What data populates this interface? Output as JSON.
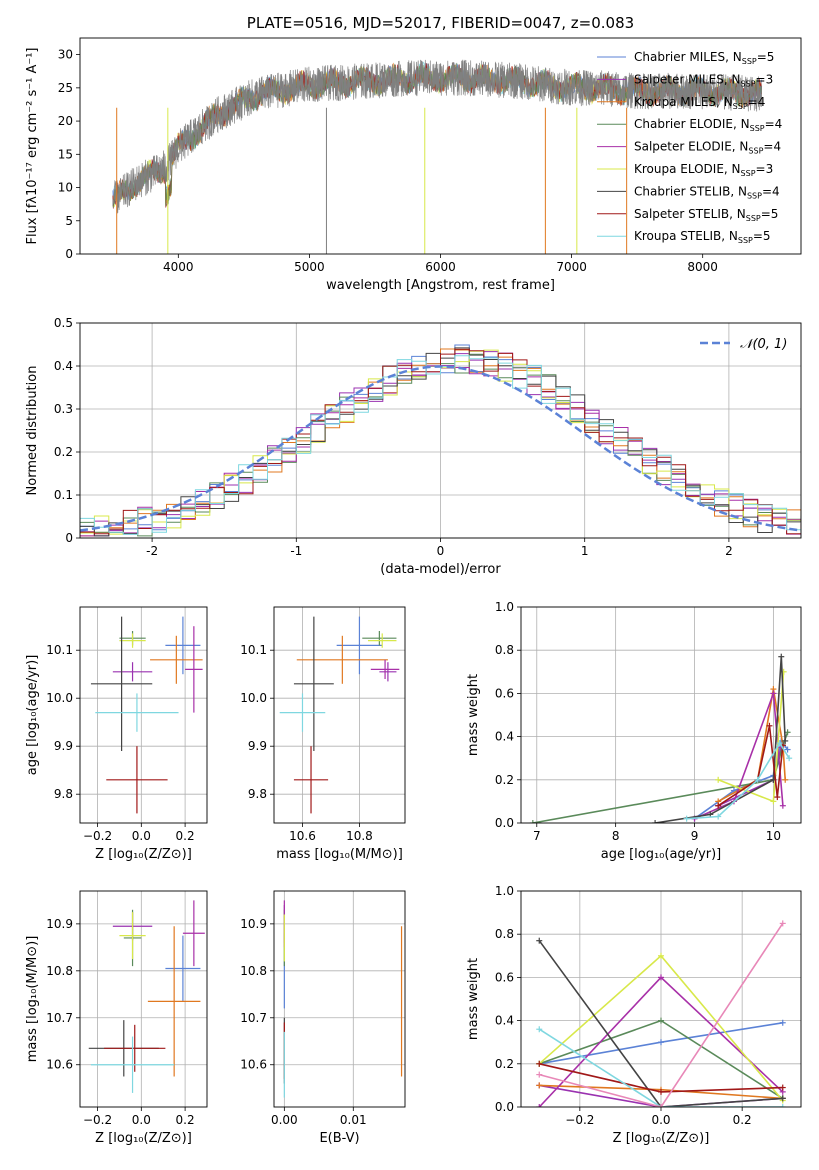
{
  "colors": {
    "Chabrier MILES": "#5b82d6",
    "Salpeter MILES": "#9a32b0",
    "Kroupa MILES": "#e07820",
    "Chabrier ELODIE": "#5a8a5a",
    "Salpeter ELODIE": "#a830a8",
    "Kroupa ELODIE": "#d8e84a",
    "Chabrier STELIB": "#444444",
    "Salpeter STELIB": "#a01818",
    "Kroupa STELIB": "#7fd7e0"
  },
  "chart_data": [
    {
      "id": "spectrum",
      "type": "line",
      "title": "PLATE=0516, MJD=52017, FIBERID=0047, z=0.083",
      "xlabel": "wavelength [Angstrom, rest frame]",
      "ylabel": "Flux [fλ10⁻¹⁷ erg cm⁻² s⁻¹ A⁻¹]",
      "xlim": [
        3250,
        8750
      ],
      "ylim": [
        0,
        32.5
      ],
      "xticks": [
        4000,
        5000,
        6000,
        7000,
        8000
      ],
      "yticks": [
        0,
        5,
        10,
        15,
        20,
        25,
        30
      ],
      "grid": false,
      "legend_placement": "top-right",
      "legend": [
        {
          "name": "Chabrier MILES",
          "sub_prefix": "N",
          "sub": "SSP",
          "suffix": "=5"
        },
        {
          "name": "Salpeter MILES",
          "sub_prefix": "N",
          "sub": "SSP",
          "suffix": "=3"
        },
        {
          "name": "Kroupa MILES",
          "sub_prefix": "N",
          "sub": "SSP",
          "suffix": "=4"
        },
        {
          "name": "Chabrier ELODIE",
          "sub_prefix": "N",
          "sub": "SSP",
          "suffix": "=4"
        },
        {
          "name": "Salpeter ELODIE",
          "sub_prefix": "N",
          "sub": "SSP",
          "suffix": "=4"
        },
        {
          "name": "Kroupa ELODIE",
          "sub_prefix": "N",
          "sub": "SSP",
          "suffix": "=3"
        },
        {
          "name": "Chabrier STELIB",
          "sub_prefix": "N",
          "sub": "SSP",
          "suffix": "=4"
        },
        {
          "name": "Salpeter STELIB",
          "sub_prefix": "N",
          "sub": "SSP",
          "suffix": "=5"
        },
        {
          "name": "Kroupa STELIB",
          "sub_prefix": "N",
          "sub": "SSP",
          "suffix": "=5"
        }
      ],
      "continuum": {
        "x": [
          3500,
          3700,
          3900,
          4000,
          4300,
          4600,
          5000,
          5400,
          5800,
          6200,
          6600,
          7000,
          7200,
          7500,
          8000,
          8500
        ],
        "y": [
          8,
          11,
          13,
          16,
          21,
          24,
          25.5,
          26,
          26.5,
          26.5,
          26,
          25,
          25,
          24.5,
          24.5,
          24
        ]
      }
    },
    {
      "id": "residuals",
      "type": "histogram",
      "xlabel": "(data-model)/error",
      "ylabel": "Normed distribution",
      "xlim": [
        -2.5,
        2.5
      ],
      "ylim": [
        0,
        0.5
      ],
      "xticks": [
        -2,
        -1,
        0,
        1,
        2
      ],
      "yticks": [
        0.0,
        0.1,
        0.2,
        0.3,
        0.4,
        0.5
      ],
      "grid": true,
      "legend_placement": "top-right",
      "reference_curve": {
        "label": "𝒩(0, 1)",
        "mean": 0,
        "sigma": 1,
        "color": "#5b82d6"
      },
      "bin_width": 0.1
    },
    {
      "id": "age_vs_Z",
      "type": "errorbar",
      "xlabel": "Z [log₁₀(Z/Z⊙)]",
      "ylabel": "age  [log₁₀(age/yr)]",
      "xlim": [
        -0.28,
        0.3
      ],
      "ylim": [
        9.74,
        10.19
      ],
      "xticks": [
        -0.2,
        0.0,
        0.2
      ],
      "yticks": [
        9.8,
        9.9,
        10.0,
        10.1
      ],
      "xticklabels": [
        "−0.2",
        "0.0",
        "0.2"
      ],
      "yticklabels": [
        "9.8",
        "9.9",
        "10.0",
        "10.1"
      ],
      "grid": true,
      "points": [
        {
          "model": "Chabrier MILES",
          "x": 0.19,
          "y": 10.11,
          "xerr": 0.08,
          "yerr": 0.06
        },
        {
          "model": "Salpeter MILES",
          "x": -0.04,
          "y": 10.055,
          "xerr": 0.09,
          "yerr": 0.02
        },
        {
          "model": "Kroupa MILES",
          "x": 0.16,
          "y": 10.08,
          "xerr": 0.12,
          "yerr": 0.05
        },
        {
          "model": "Chabrier ELODIE",
          "x": -0.04,
          "y": 10.125,
          "xerr": 0.06,
          "yerr": 0.015
        },
        {
          "model": "Salpeter ELODIE",
          "x": 0.24,
          "y": 10.06,
          "xerr": 0.04,
          "yerr": 0.09
        },
        {
          "model": "Kroupa ELODIE",
          "x": -0.04,
          "y": 10.12,
          "xerr": 0.06,
          "yerr": 0.015
        },
        {
          "model": "Chabrier STELIB",
          "x": -0.09,
          "y": 10.03,
          "xerr": 0.14,
          "yerr": 0.14
        },
        {
          "model": "Salpeter STELIB",
          "x": -0.02,
          "y": 9.83,
          "xerr": 0.14,
          "yerr": 0.07
        },
        {
          "model": "Kroupa STELIB",
          "x": -0.02,
          "y": 9.97,
          "xerr": 0.19,
          "yerr": 0.04
        }
      ]
    },
    {
      "id": "age_vs_mass",
      "type": "errorbar",
      "xlabel": "mass [log₁₀(M/M⊙)]",
      "ylabel": "",
      "xlim": [
        10.5,
        10.96
      ],
      "ylim": [
        9.74,
        10.19
      ],
      "xticks": [
        10.6,
        10.8
      ],
      "yticks": [
        9.8,
        9.9,
        10.0,
        10.1
      ],
      "xticklabels": [
        "10.6",
        "10.8"
      ],
      "yticklabels": [
        "9.8",
        "9.9",
        "10.0",
        "10.1"
      ],
      "grid": true,
      "points": [
        {
          "model": "Chabrier MILES",
          "x": 10.8,
          "y": 10.11,
          "xerr": 0.08,
          "yerr": 0.06
        },
        {
          "model": "Salpeter MILES",
          "x": 10.9,
          "y": 10.055,
          "xerr": 0.03,
          "yerr": 0.02
        },
        {
          "model": "Kroupa MILES",
          "x": 10.74,
          "y": 10.08,
          "xerr": 0.16,
          "yerr": 0.05
        },
        {
          "model": "Chabrier ELODIE",
          "x": 10.87,
          "y": 10.125,
          "xerr": 0.06,
          "yerr": 0.015
        },
        {
          "model": "Salpeter ELODIE",
          "x": 10.89,
          "y": 10.06,
          "xerr": 0.05,
          "yerr": 0.02
        },
        {
          "model": "Kroupa ELODIE",
          "x": 10.88,
          "y": 10.12,
          "xerr": 0.05,
          "yerr": 0.015
        },
        {
          "model": "Chabrier STELIB",
          "x": 10.64,
          "y": 10.03,
          "xerr": 0.07,
          "yerr": 0.14
        },
        {
          "model": "Salpeter STELIB",
          "x": 10.63,
          "y": 9.83,
          "xerr": 0.06,
          "yerr": 0.07
        },
        {
          "model": "Kroupa STELIB",
          "x": 10.6,
          "y": 9.97,
          "xerr": 0.08,
          "yerr": 0.04
        }
      ]
    },
    {
      "id": "weight_vs_age",
      "type": "line",
      "xlabel": "age  [log₁₀(age/yr)]",
      "ylabel": "mass weight",
      "xlim": [
        6.8,
        10.35
      ],
      "ylim": [
        0,
        1.0
      ],
      "xticks": [
        7,
        8,
        9,
        10
      ],
      "yticks": [
        0.0,
        0.2,
        0.4,
        0.6,
        0.8,
        1.0
      ],
      "xticklabels": [
        "7",
        "8",
        "9",
        "10"
      ],
      "yticklabels": [
        "0.0",
        "0.2",
        "0.4",
        "0.6",
        "0.8",
        "1.0"
      ],
      "grid": true,
      "series": [
        {
          "model": "Chabrier MILES",
          "x": [
            9.0,
            9.5,
            10.0,
            10.1,
            10.18
          ],
          "y": [
            0.02,
            0.15,
            0.22,
            0.38,
            0.34
          ]
        },
        {
          "model": "Salpeter MILES",
          "x": [
            9.3,
            10.0,
            10.1
          ],
          "y": [
            0.08,
            0.2,
            0.35
          ]
        },
        {
          "model": "Kroupa MILES",
          "x": [
            9.3,
            9.8,
            10.0,
            10.12,
            10.15
          ],
          "y": [
            0.1,
            0.2,
            0.62,
            0.36,
            0.2
          ]
        },
        {
          "model": "Chabrier ELODIE",
          "x": [
            6.95,
            10.0,
            10.12,
            10.18
          ],
          "y": [
            0.0,
            0.2,
            0.36,
            0.42
          ]
        },
        {
          "model": "Salpeter ELODIE",
          "x": [
            9.0,
            9.5,
            10.0,
            10.12
          ],
          "y": [
            0.02,
            0.1,
            0.6,
            0.08
          ]
        },
        {
          "model": "Kroupa ELODIE",
          "x": [
            9.3,
            10.0,
            10.13
          ],
          "y": [
            0.2,
            0.1,
            0.7
          ]
        },
        {
          "model": "Chabrier STELIB",
          "x": [
            8.5,
            9.2,
            10.0,
            10.1,
            10.15
          ],
          "y": [
            0.0,
            0.04,
            0.2,
            0.77,
            0.38
          ]
        },
        {
          "model": "Salpeter STELIB",
          "x": [
            9.3,
            9.8,
            9.95,
            10.05,
            10.12
          ],
          "y": [
            0.08,
            0.2,
            0.45,
            0.12,
            0.36
          ]
        },
        {
          "model": "Kroupa STELIB",
          "x": [
            8.9,
            9.3,
            9.8,
            10.08,
            10.2
          ],
          "y": [
            0.02,
            0.03,
            0.2,
            0.37,
            0.3
          ]
        }
      ]
    },
    {
      "id": "mass_vs_Z",
      "type": "errorbar",
      "xlabel": "Z [log₁₀(Z/Z⊙)]",
      "ylabel": "mass [log₁₀(M/M⊙)]",
      "xlim": [
        -0.28,
        0.3
      ],
      "ylim": [
        10.51,
        10.97
      ],
      "xticks": [
        -0.2,
        0.0,
        0.2
      ],
      "yticks": [
        10.6,
        10.7,
        10.8,
        10.9
      ],
      "xticklabels": [
        "−0.2",
        "0.0",
        "0.2"
      ],
      "yticklabels": [
        "10.6",
        "10.7",
        "10.8",
        "10.9"
      ],
      "grid": true,
      "points": [
        {
          "model": "Chabrier MILES",
          "x": 0.19,
          "y": 10.805,
          "xerr": 0.08,
          "yerr": 0.07
        },
        {
          "model": "Salpeter MILES",
          "x": -0.04,
          "y": 10.895,
          "xerr": 0.09,
          "yerr": 0.03
        },
        {
          "model": "Kroupa MILES",
          "x": 0.15,
          "y": 10.735,
          "xerr": 0.12,
          "yerr": 0.16
        },
        {
          "model": "Chabrier ELODIE",
          "x": -0.04,
          "y": 10.87,
          "xerr": 0.04,
          "yerr": 0.06
        },
        {
          "model": "Salpeter ELODIE",
          "x": 0.24,
          "y": 10.88,
          "xerr": 0.05,
          "yerr": 0.07
        },
        {
          "model": "Kroupa ELODIE",
          "x": -0.04,
          "y": 10.875,
          "xerr": 0.06,
          "yerr": 0.05
        },
        {
          "model": "Chabrier STELIB",
          "x": -0.08,
          "y": 10.635,
          "xerr": 0.16,
          "yerr": 0.06
        },
        {
          "model": "Salpeter STELIB",
          "x": -0.03,
          "y": 10.635,
          "xerr": 0.14,
          "yerr": 0.05
        },
        {
          "model": "Kroupa STELIB",
          "x": -0.04,
          "y": 10.6,
          "xerr": 0.19,
          "yerr": 0.06
        }
      ]
    },
    {
      "id": "mass_vs_ebv",
      "type": "errorbar",
      "xlabel": "E(B-V)",
      "ylabel": "",
      "xlim": [
        -0.0015,
        0.0175
      ],
      "ylim": [
        10.51,
        10.97
      ],
      "xticks": [
        0.0,
        0.01
      ],
      "yticks": [
        10.6,
        10.7,
        10.8,
        10.9
      ],
      "xticklabels": [
        "0.00",
        "0.01"
      ],
      "yticklabels": [
        "10.6",
        "10.7",
        "10.8",
        "10.9"
      ],
      "grid": true,
      "points": [
        {
          "model": "Chabrier MILES",
          "x": 0.0,
          "y": 10.8,
          "xerr": 0,
          "yerr": 0.08
        },
        {
          "model": "Salpeter MILES",
          "x": 0.0,
          "y": 10.9,
          "xerr": 0,
          "yerr": 0.04
        },
        {
          "model": "Kroupa MILES",
          "x": 0.017,
          "y": 10.735,
          "xerr": 0,
          "yerr": 0.16
        },
        {
          "model": "Chabrier ELODIE",
          "x": 0.0,
          "y": 10.87,
          "xerr": 0,
          "yerr": 0.06
        },
        {
          "model": "Salpeter ELODIE",
          "x": 0.0,
          "y": 10.9,
          "xerr": 0,
          "yerr": 0.05
        },
        {
          "model": "Kroupa ELODIE",
          "x": 0.0,
          "y": 10.87,
          "xerr": 0,
          "yerr": 0.05
        },
        {
          "model": "Chabrier STELIB",
          "x": 0.0,
          "y": 10.63,
          "xerr": 0,
          "yerr": 0.07
        },
        {
          "model": "Salpeter STELIB",
          "x": 0.0,
          "y": 10.63,
          "xerr": 0,
          "yerr": 0.06
        },
        {
          "model": "Kroupa STELIB",
          "x": 0.0,
          "y": 10.6,
          "xerr": 0,
          "yerr": 0.07
        }
      ]
    },
    {
      "id": "weight_vs_Z",
      "type": "line",
      "xlabel": "Z [log₁₀(Z/Z⊙)]",
      "ylabel": "mass weight",
      "xlim": [
        -0.345,
        0.345
      ],
      "ylim": [
        0,
        1.0
      ],
      "xticks": [
        -0.2,
        0.0,
        0.2
      ],
      "yticks": [
        0.0,
        0.2,
        0.4,
        0.6,
        0.8,
        1.0
      ],
      "xticklabels": [
        "−0.2",
        "0.0",
        "0.2"
      ],
      "yticklabels": [
        "0.0",
        "0.2",
        "0.4",
        "0.6",
        "0.8",
        "1.0"
      ],
      "grid": true,
      "series": [
        {
          "model": "Chabrier MILES",
          "x": [
            -0.3,
            0.0,
            0.3
          ],
          "y": [
            0.2,
            0.3,
            0.39
          ]
        },
        {
          "model": "Salpeter MILES",
          "x": [
            -0.3,
            0.0,
            0.3
          ],
          "y": [
            0.1,
            0.0,
            0.04
          ]
        },
        {
          "model": "Kroupa MILES",
          "x": [
            -0.3,
            0.0,
            0.3
          ],
          "y": [
            0.1,
            0.08,
            0.04
          ]
        },
        {
          "model": "Chabrier ELODIE",
          "x": [
            -0.3,
            0.0,
            0.3
          ],
          "y": [
            0.2,
            0.4,
            0.04
          ]
        },
        {
          "model": "Salpeter ELODIE",
          "x": [
            -0.3,
            0.0,
            0.3
          ],
          "y": [
            0.0,
            0.6,
            0.07
          ]
        },
        {
          "model": "Kroupa ELODIE",
          "x": [
            -0.3,
            0.0,
            0.3
          ],
          "y": [
            0.2,
            0.7,
            0.03
          ]
        },
        {
          "model": "Chabrier STELIB",
          "x": [
            -0.3,
            0.0,
            0.3
          ],
          "y": [
            0.77,
            0.0,
            0.04
          ]
        },
        {
          "model": "Salpeter STELIB",
          "x": [
            -0.3,
            0.0,
            0.3
          ],
          "y": [
            0.2,
            0.07,
            0.09
          ]
        },
        {
          "model": "Kroupa STELIB",
          "x": [
            -0.3,
            0.0,
            0.3
          ],
          "y": [
            0.36,
            0.0,
            0.0
          ]
        },
        {
          "model": "Salpeter ELODIE",
          "x": [
            -0.3,
            0.0,
            0.3
          ],
          "y": [
            0.15,
            0.0,
            0.85
          ]
        }
      ]
    }
  ]
}
